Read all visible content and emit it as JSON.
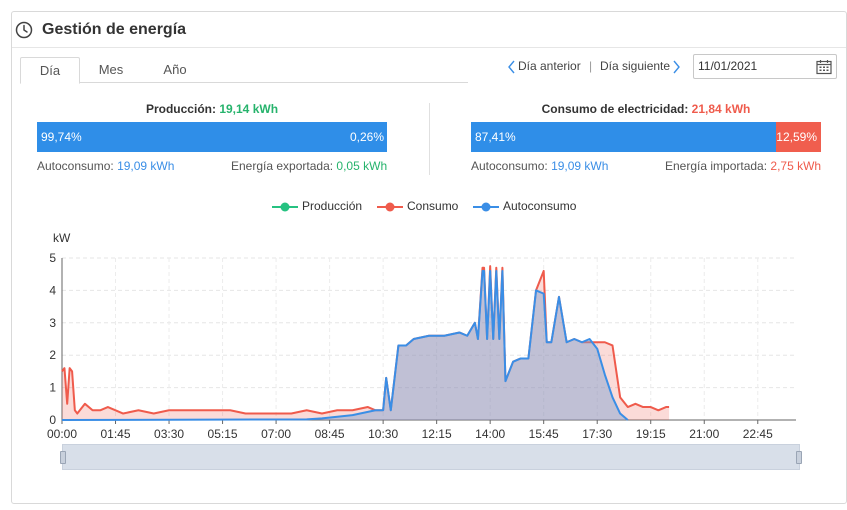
{
  "header": {
    "title": "Gestión de energía",
    "icon": "clock-icon"
  },
  "tabs": [
    {
      "label": "Día",
      "active": true
    },
    {
      "label": "Mes",
      "active": false
    },
    {
      "label": "Año",
      "active": false
    }
  ],
  "nav": {
    "prev_label": "Día anterior",
    "separator": "|",
    "next_label": "Día siguiente",
    "date_value": "11/01/2021"
  },
  "production": {
    "title": "Producción:",
    "value": "19,14 kWh",
    "bar_left_pct_label": "99,74%",
    "bar_right_pct_label": "0,26%",
    "bar_left_fraction": 0.9974,
    "self_label": "Autoconsumo:",
    "self_value": "19,09 kWh",
    "export_label": "Energía exportada:",
    "export_value": "0,05 kWh"
  },
  "consumption": {
    "title": "Consumo de electricidad:",
    "value": "21,84 kWh",
    "bar_left_pct_label": "87,41%",
    "bar_right_pct_label": "12,59%",
    "bar_left_fraction": 0.8741,
    "self_label": "Autoconsumo:",
    "self_value": "19,09 kWh",
    "import_label": "Energía importada:",
    "import_value": "2,75 kWh"
  },
  "colors": {
    "production": "#26c281",
    "consumption": "#ef5b4c",
    "self": "#3a8ee6"
  },
  "chart_data": {
    "type": "area",
    "ylabel": "kW",
    "ylim": [
      0,
      5
    ],
    "yticks": [
      "0",
      "1",
      "2",
      "3",
      "4",
      "5"
    ],
    "xticks": [
      "00:00",
      "01:45",
      "03:30",
      "05:15",
      "07:00",
      "08:45",
      "10:30",
      "12:15",
      "14:00",
      "15:45",
      "17:30",
      "19:15",
      "21:00",
      "22:45"
    ],
    "grid": true,
    "legend_position": "top-center",
    "series": [
      {
        "name": "Producción",
        "x": [],
        "values": []
      },
      {
        "name": "Consumo",
        "x": [
          0,
          0.08,
          0.17,
          0.25,
          0.33,
          0.42,
          0.5,
          0.75,
          1.0,
          1.25,
          1.5,
          1.75,
          2.0,
          2.5,
          3.0,
          3.5,
          4.0,
          4.5,
          5.0,
          5.5,
          6.0,
          6.5,
          7.0,
          7.5,
          8.0,
          8.5,
          9.0,
          9.5,
          10.0,
          10.25,
          10.5,
          10.6,
          10.75,
          11.0,
          11.25,
          11.5,
          12.0,
          12.5,
          13.0,
          13.25,
          13.5,
          13.6,
          13.75,
          13.8,
          13.9,
          14.0,
          14.1,
          14.2,
          14.3,
          14.4,
          14.5,
          14.75,
          15.0,
          15.25,
          15.5,
          15.75,
          15.85,
          15.95,
          16.0,
          16.25,
          16.5,
          16.75,
          17.0,
          17.25,
          17.5,
          17.75,
          18.0,
          18.25,
          18.5,
          18.75,
          19.0,
          19.25,
          19.5,
          19.75,
          19.85
        ],
        "values": [
          1.5,
          1.6,
          0.5,
          1.6,
          1.5,
          0.3,
          0.2,
          0.5,
          0.3,
          0.3,
          0.4,
          0.3,
          0.2,
          0.3,
          0.2,
          0.3,
          0.3,
          0.3,
          0.3,
          0.3,
          0.2,
          0.2,
          0.2,
          0.2,
          0.3,
          0.2,
          0.3,
          0.3,
          0.4,
          0.3,
          0.3,
          1.3,
          0.3,
          2.3,
          2.3,
          2.5,
          2.6,
          2.6,
          2.7,
          2.6,
          3.0,
          2.5,
          4.7,
          4.7,
          2.5,
          4.75,
          2.5,
          4.7,
          2.5,
          4.7,
          1.2,
          1.8,
          1.9,
          1.9,
          4.0,
          4.6,
          2.4,
          2.4,
          2.4,
          3.8,
          2.4,
          2.5,
          2.4,
          2.4,
          2.4,
          2.4,
          2.3,
          0.7,
          0.4,
          0.5,
          0.4,
          0.4,
          0.3,
          0.4,
          0.4
        ]
      },
      {
        "name": "Autoconsumo",
        "x": [
          0,
          8.0,
          8.5,
          9.0,
          9.5,
          10.0,
          10.25,
          10.5,
          10.6,
          10.75,
          11.0,
          11.25,
          11.5,
          12.0,
          12.5,
          13.0,
          13.25,
          13.5,
          13.6,
          13.75,
          13.8,
          13.9,
          14.0,
          14.1,
          14.2,
          14.3,
          14.4,
          14.5,
          14.75,
          15.0,
          15.25,
          15.5,
          15.75,
          15.85,
          15.95,
          16.0,
          16.25,
          16.5,
          16.75,
          17.0,
          17.25,
          17.5,
          17.75,
          18.0,
          18.25,
          18.5
        ],
        "values": [
          0,
          0.02,
          0.05,
          0.1,
          0.15,
          0.25,
          0.3,
          0.3,
          1.3,
          0.3,
          2.3,
          2.3,
          2.5,
          2.6,
          2.6,
          2.7,
          2.6,
          3.0,
          2.5,
          4.6,
          4.6,
          2.5,
          4.6,
          2.5,
          4.6,
          2.5,
          4.6,
          1.2,
          1.8,
          1.9,
          1.9,
          4.0,
          3.9,
          2.4,
          2.4,
          2.4,
          3.8,
          2.4,
          2.5,
          2.4,
          2.5,
          2.2,
          1.4,
          0.7,
          0.2,
          0
        ]
      }
    ]
  }
}
